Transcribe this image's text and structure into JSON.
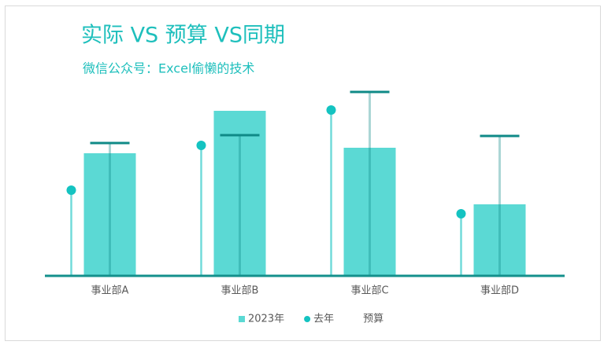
{
  "chart_data": {
    "type": "bar",
    "title": "实际 VS 预算 VS同期",
    "subtitle": "微信公众号：Excel偷懒的技术",
    "categories": [
      "事业部A",
      "事业部B",
      "事业部C",
      "事业部D"
    ],
    "series": [
      {
        "name": "2023年",
        "type": "bar",
        "color": "#5bd9d4",
        "values": [
          156,
          210,
          163,
          91
        ]
      },
      {
        "name": "去年",
        "type": "lollipop",
        "color": "#14c3c1",
        "values": [
          109,
          166,
          211,
          79
        ]
      },
      {
        "name": "预算",
        "type": "marker",
        "color": "#0f8a87",
        "values": [
          169,
          179,
          234,
          178
        ]
      }
    ],
    "ylim": [
      0,
      250
    ]
  }
}
